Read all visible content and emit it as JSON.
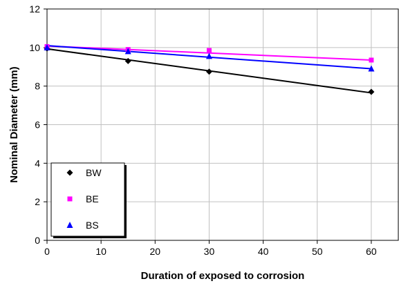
{
  "chart_data": {
    "type": "scatter",
    "title": "",
    "xlabel": "Duration of exposed to corrosion",
    "ylabel": "Nominal Diameter (mm)",
    "xlim": [
      0,
      65
    ],
    "ylim": [
      0,
      12
    ],
    "xticks": [
      "0",
      "10",
      "20",
      "30",
      "40",
      "50",
      "60"
    ],
    "yticks": [
      "0",
      "2",
      "4",
      "6",
      "8",
      "10",
      "12"
    ],
    "grid": true,
    "legend_position": "bottom-left",
    "series": [
      {
        "name": "BW",
        "color": "#000000",
        "marker": "diamond",
        "x": [
          0,
          15,
          30,
          60
        ],
        "y": [
          9.95,
          9.3,
          8.75,
          7.7
        ],
        "trendline": {
          "x": [
            0,
            60
          ],
          "y": [
            9.93,
            7.65
          ]
        }
      },
      {
        "name": "BE",
        "color": "#ff00ff",
        "marker": "square",
        "x": [
          0,
          15,
          30,
          60
        ],
        "y": [
          10.05,
          9.9,
          9.85,
          9.35
        ],
        "trendline": {
          "x": [
            0,
            60
          ],
          "y": [
            10.08,
            9.35
          ]
        }
      },
      {
        "name": "BS",
        "color": "#0000ff",
        "marker": "triangle",
        "x": [
          0,
          15,
          30,
          60
        ],
        "y": [
          10.0,
          9.8,
          9.55,
          8.9
        ],
        "trendline": {
          "x": [
            0,
            60
          ],
          "y": [
            10.1,
            8.9
          ]
        }
      }
    ]
  }
}
